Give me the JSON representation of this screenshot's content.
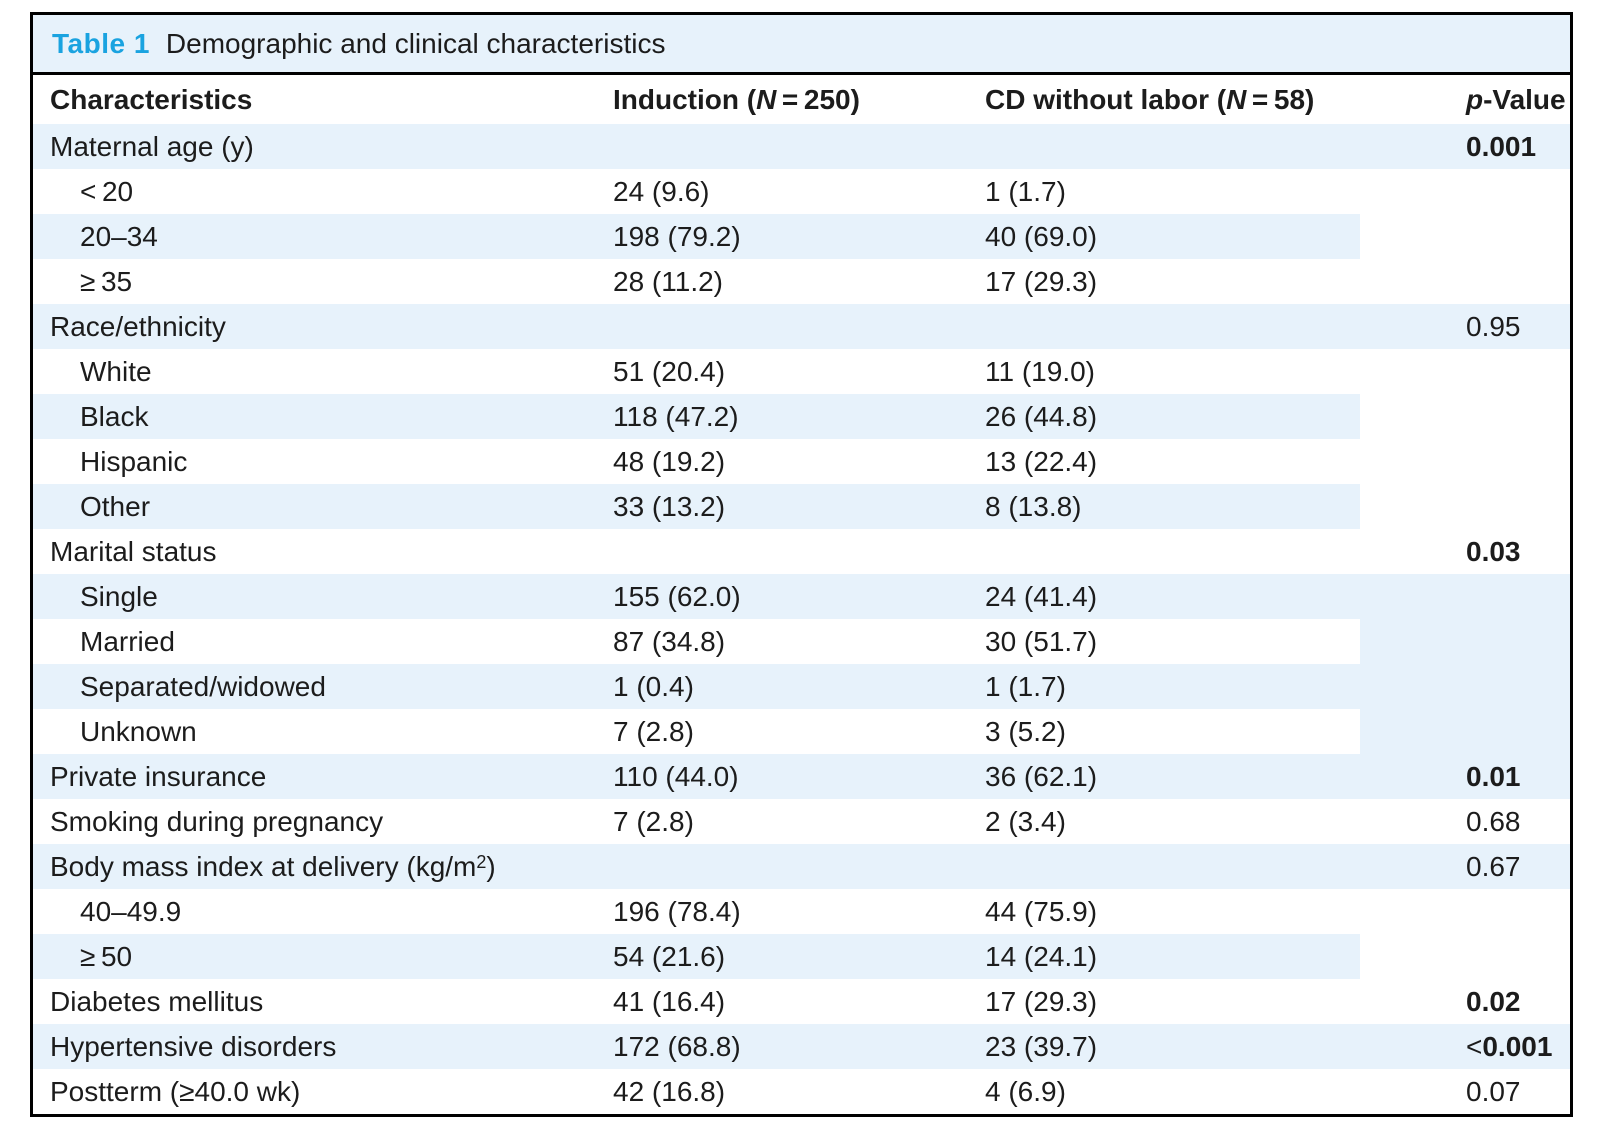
{
  "caption": {
    "label": "Table 1",
    "title": "Demographic and clinical characteristics"
  },
  "columns": {
    "characteristics": "Characteristics",
    "induction": {
      "pre": "Induction (",
      "it": "N",
      "post": " = 250)"
    },
    "cd": {
      "pre": "CD without labor (",
      "it": "N",
      "post": " = 58)"
    },
    "pvalue": {
      "it": "p",
      "post": "-Value"
    }
  },
  "colors": {
    "accent_blue": "#1aa3e0",
    "row_shade": "#e7f2fb",
    "border": "#000000"
  },
  "rows": [
    {
      "label": "Maternal age (y)",
      "shade": true,
      "p": "0.001",
      "p_bold": true
    },
    {
      "label": "< 20",
      "indent": true,
      "p_span": 3,
      "induction": "24 (9.6)",
      "cd": "1 (1.7)"
    },
    {
      "label": "20–34",
      "indent": true,
      "shade": true,
      "induction": "198 (79.2)",
      "cd": "40 (69.0)"
    },
    {
      "label": "≥ 35",
      "indent": true,
      "induction": "28 (11.2)",
      "cd": "17 (29.3)"
    },
    {
      "label": "Race/ethnicity",
      "shade": true,
      "p": "0.95"
    },
    {
      "label": "White",
      "indent": true,
      "p_span": 4,
      "induction": "51 (20.4)",
      "cd": "11 (19.0)"
    },
    {
      "label": "Black",
      "indent": true,
      "shade": true,
      "induction": "118 (47.2)",
      "cd": "26 (44.8)"
    },
    {
      "label": "Hispanic",
      "indent": true,
      "induction": "48 (19.2)",
      "cd": "13 (22.4)"
    },
    {
      "label": "Other",
      "indent": true,
      "shade": true,
      "induction": "33 (13.2)",
      "cd": "8 (13.8)"
    },
    {
      "label": "Marital status",
      "p": "0.03",
      "p_bold": true
    },
    {
      "label": "Single",
      "indent": true,
      "shade": true,
      "p_span": 4,
      "induction": "155 (62.0)",
      "cd": "24 (41.4)"
    },
    {
      "label": "Married",
      "indent": true,
      "induction": "87 (34.8)",
      "cd": "30 (51.7)"
    },
    {
      "label": "Separated/widowed",
      "indent": true,
      "shade": true,
      "induction": "1 (0.4)",
      "cd": "1 (1.7)"
    },
    {
      "label": "Unknown",
      "indent": true,
      "induction": "7 (2.8)",
      "cd": "3 (5.2)"
    },
    {
      "label": "Private insurance",
      "shade": true,
      "induction": "110 (44.0)",
      "cd": "36 (62.1)",
      "p": "0.01",
      "p_bold": true
    },
    {
      "label": "Smoking during pregnancy",
      "induction": "7 (2.8)",
      "cd": "2 (3.4)",
      "p": "0.68"
    },
    {
      "label_pre": "Body mass index at delivery (kg/m",
      "label_sup": "2",
      "label_post": ")",
      "shade": true,
      "p": "0.67"
    },
    {
      "label": "40–49.9",
      "indent": true,
      "p_span": 2,
      "induction": "196 (78.4)",
      "cd": "44 (75.9)"
    },
    {
      "label": "≥ 50",
      "indent": true,
      "shade": true,
      "induction": "54 (21.6)",
      "cd": "14 (24.1)"
    },
    {
      "label": "Diabetes mellitus",
      "induction": "41 (16.4)",
      "cd": "17 (29.3)",
      "p": "0.02",
      "p_bold": true
    },
    {
      "label": "Hypertensive disorders",
      "shade": true,
      "induction": "172 (68.8)",
      "cd": "23 (39.7)",
      "p_prefix": "<",
      "p": "0.001",
      "p_bold": true
    },
    {
      "label": "Postterm (≥40.0 wk)",
      "induction": "42 (16.8)",
      "cd": "4 (6.9)",
      "p": "0.07"
    }
  ]
}
